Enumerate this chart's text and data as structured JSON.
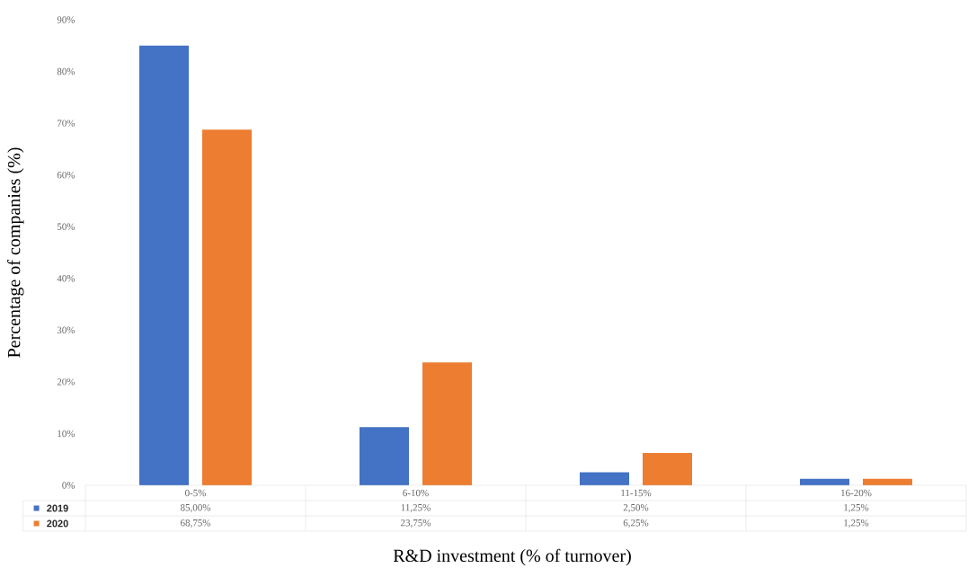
{
  "chart_data": {
    "type": "bar",
    "xlabel": "R&D investment (% of turnover)",
    "ylabel": "Percentage of companies (%)",
    "categories": [
      "0-5%",
      "6-10%",
      "11-15%",
      "16-20%"
    ],
    "series": [
      {
        "name": "2019",
        "color": "#4472c4",
        "values": [
          85,
          11.25,
          2.5,
          1.25
        ],
        "value_labels": [
          "85,00%",
          "11,25%",
          "2,50%",
          "1,25%"
        ]
      },
      {
        "name": "2020",
        "color": "#ed7d31",
        "values": [
          68.75,
          23.75,
          6.25,
          1.25
        ],
        "value_labels": [
          "68,75%",
          "23,75%",
          "6,25%",
          "1,25%"
        ]
      }
    ],
    "ylim": [
      0,
      90
    ],
    "yticks": [
      {
        "value": 0,
        "label": "0%"
      },
      {
        "value": 10,
        "label": "10%"
      },
      {
        "value": 20,
        "label": "20%"
      },
      {
        "value": 30,
        "label": "30%"
      },
      {
        "value": 40,
        "label": "40%"
      },
      {
        "value": 50,
        "label": "50%"
      },
      {
        "value": 60,
        "label": "60%"
      },
      {
        "value": 70,
        "label": "70%"
      },
      {
        "value": 80,
        "label": "80%"
      },
      {
        "value": 90,
        "label": "90%"
      }
    ],
    "grid": false,
    "legend": "bottom"
  }
}
